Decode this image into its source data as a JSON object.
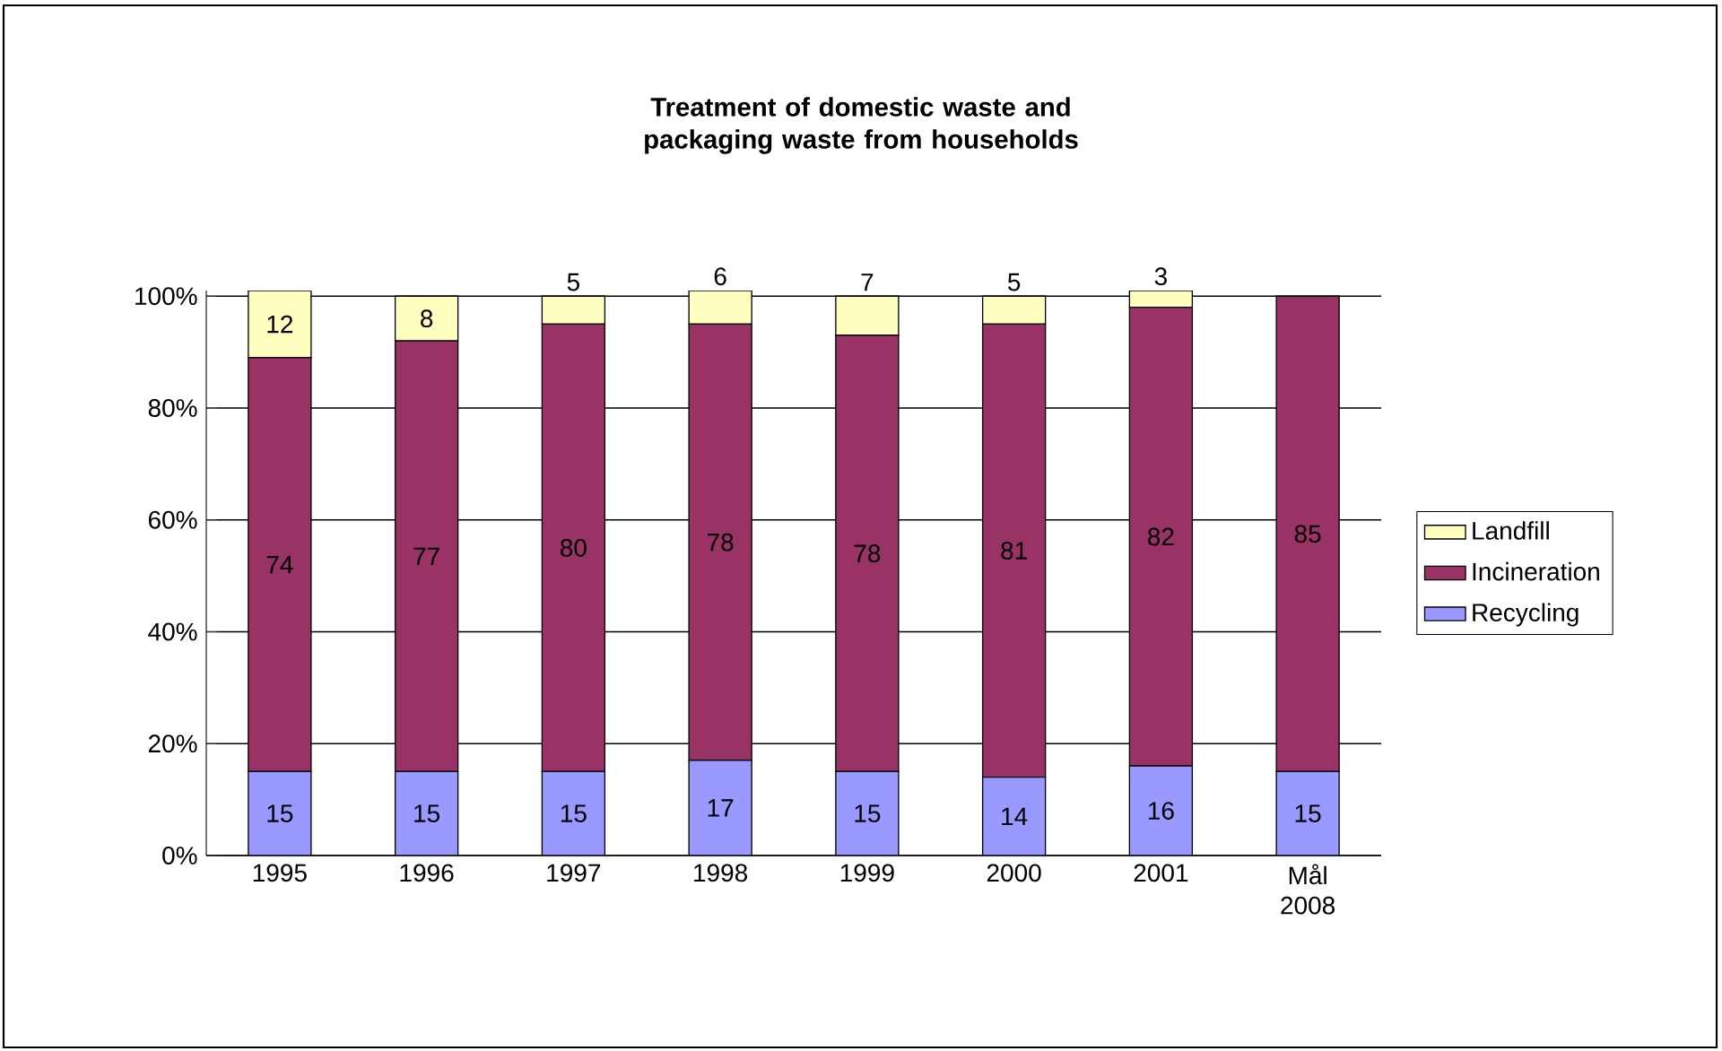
{
  "chart_data": {
    "type": "bar",
    "stacked": true,
    "title": "Treatment of domestic waste and packaging waste from households",
    "categories": [
      "1995",
      "1996",
      "1997",
      "1998",
      "1999",
      "2000",
      "2001",
      "Mål 2008"
    ],
    "series": [
      {
        "name": "Recycling",
        "color": "#9999ff",
        "values": [
          15,
          15,
          15,
          17,
          15,
          14,
          16,
          15
        ],
        "value_labels": [
          "15",
          "15",
          "15",
          "17",
          "15",
          "14",
          "16",
          "15"
        ]
      },
      {
        "name": "Incineration",
        "color": "#993366",
        "values": [
          74,
          77,
          80,
          78,
          78,
          81,
          82,
          85
        ],
        "value_labels": [
          "74",
          "77",
          "80",
          "78",
          "78",
          "81",
          "82",
          "85"
        ]
      },
      {
        "name": "Landfill",
        "color": "#ffffc0",
        "values": [
          12,
          8,
          5,
          6,
          7,
          5,
          3,
          0
        ],
        "value_labels": [
          "12",
          "8",
          "5",
          "6",
          "7",
          "5",
          "3",
          null
        ]
      }
    ],
    "ylim": [
      0,
      101
    ],
    "yticks": [
      {
        "value": 0,
        "label": "0%"
      },
      {
        "value": 20,
        "label": "20%"
      },
      {
        "value": 40,
        "label": "40%"
      },
      {
        "value": 60,
        "label": "60%"
      },
      {
        "value": 80,
        "label": "80%"
      },
      {
        "value": 100,
        "label": "100%"
      }
    ],
    "grid": "y",
    "legend": "right"
  }
}
